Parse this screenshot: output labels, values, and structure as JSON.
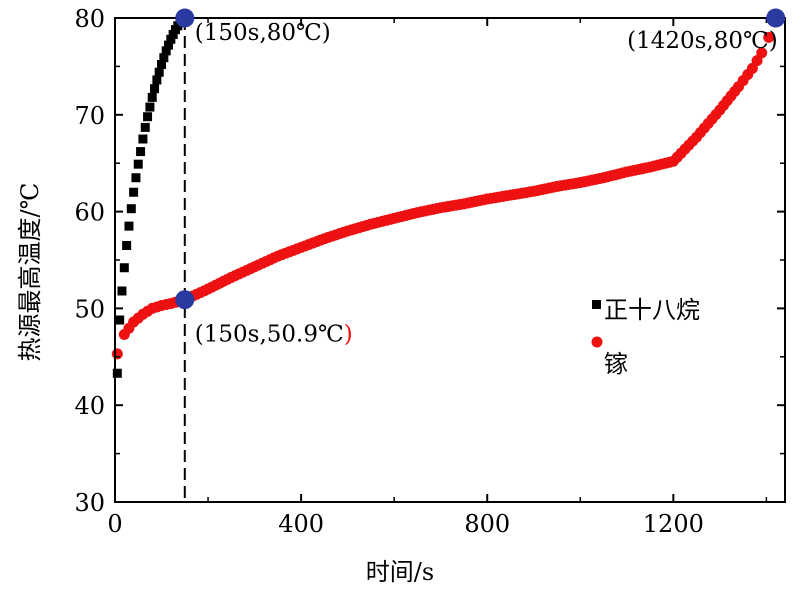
{
  "chart_data": {
    "type": "scatter",
    "xlabel": "时间/s",
    "ylabel": "热源最高温度/℃",
    "xlim": [
      0,
      1440
    ],
    "ylim": [
      30,
      80
    ],
    "xticks": [
      "0",
      "400",
      "800",
      "1200"
    ],
    "yticks": [
      "30",
      "40",
      "50",
      "60",
      "70",
      "80"
    ],
    "grid": false,
    "legend_position": "right-middle",
    "series": [
      {
        "name": "正十八烷",
        "color": "#000000",
        "marker": "square",
        "x": [
          5,
          10,
          15,
          20,
          25,
          30,
          35,
          40,
          45,
          50,
          55,
          60,
          65,
          70,
          75,
          80,
          85,
          90,
          95,
          100,
          105,
          110,
          115,
          120,
          125,
          130,
          135,
          140,
          145,
          150
        ],
        "y": [
          43.3,
          48.8,
          51.8,
          54.2,
          56.5,
          58.5,
          60.3,
          62,
          63.5,
          64.9,
          66.2,
          67.5,
          68.7,
          69.8,
          70.8,
          71.8,
          72.7,
          73.6,
          74.4,
          75.2,
          75.9,
          76.6,
          77.2,
          77.8,
          78.3,
          78.8,
          79.2,
          79.5,
          79.8,
          80
        ]
      },
      {
        "name": "镓",
        "color": "#ee1111",
        "marker": "circle",
        "x": [
          5,
          20,
          40,
          60,
          80,
          100,
          120,
          150,
          200,
          250,
          300,
          350,
          400,
          450,
          500,
          550,
          600,
          650,
          700,
          750,
          800,
          850,
          900,
          950,
          1000,
          1050,
          1100,
          1150,
          1200,
          1250,
          1300,
          1340,
          1370,
          1390,
          1405,
          1420
        ],
        "y": [
          45.3,
          47.3,
          48.6,
          49.4,
          50.0,
          50.3,
          50.5,
          50.9,
          52.0,
          53.2,
          54.3,
          55.4,
          56.3,
          57.2,
          58.0,
          58.7,
          59.3,
          59.9,
          60.4,
          60.8,
          61.3,
          61.7,
          62.1,
          62.6,
          63.0,
          63.5,
          64.1,
          64.6,
          65.2,
          67.7,
          70.5,
          72.9,
          74.8,
          76.4,
          78.0,
          80.0
        ]
      }
    ],
    "annotations": [
      {
        "text": "(150s,80℃)",
        "x": 150,
        "y": 80
      },
      {
        "text": "(1420s,80℃)",
        "x": 1420,
        "y": 80
      },
      {
        "text": "(150s,50.9℃",
        "suffix": ")",
        "suffix_color": "#ee1111",
        "x": 150,
        "y": 50.9
      }
    ],
    "reference_line": {
      "x": 150,
      "style": "dashed"
    },
    "highlight_color": "#2b3aa0"
  }
}
